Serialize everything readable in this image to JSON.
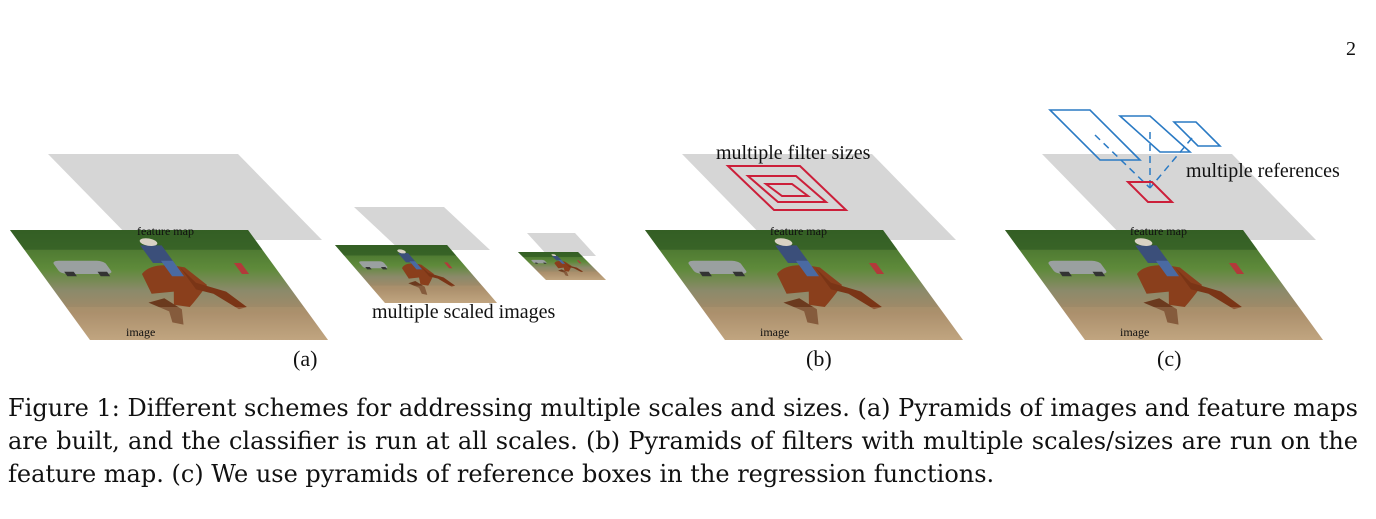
{
  "page_number": "2",
  "figure": {
    "panels": [
      {
        "id": "a",
        "feature_map_label": "feature map",
        "image_label": "image",
        "annotation": "multiple scaled images",
        "sublabel": "(a)"
      },
      {
        "id": "b",
        "feature_map_label": "feature map",
        "image_label": "image",
        "annotation": "multiple filter sizes",
        "sublabel": "(b)"
      },
      {
        "id": "c",
        "feature_map_label": "feature map",
        "image_label": "image",
        "annotation": "multiple references",
        "sublabel": "(c)"
      }
    ],
    "colors": {
      "feature_map": "#d6d6d6",
      "filter_boxes": "#cc1f3a",
      "reference_boxes": "#2a7ac4"
    }
  },
  "caption": "Figure 1: Different schemes for addressing multiple scales and sizes. (a) Pyramids of images and feature maps are built, and the classifier is run at all scales. (b) Pyramids of filters with multiple scales/sizes are run on the feature map. (c) We use pyramids of reference boxes in the regression functions."
}
